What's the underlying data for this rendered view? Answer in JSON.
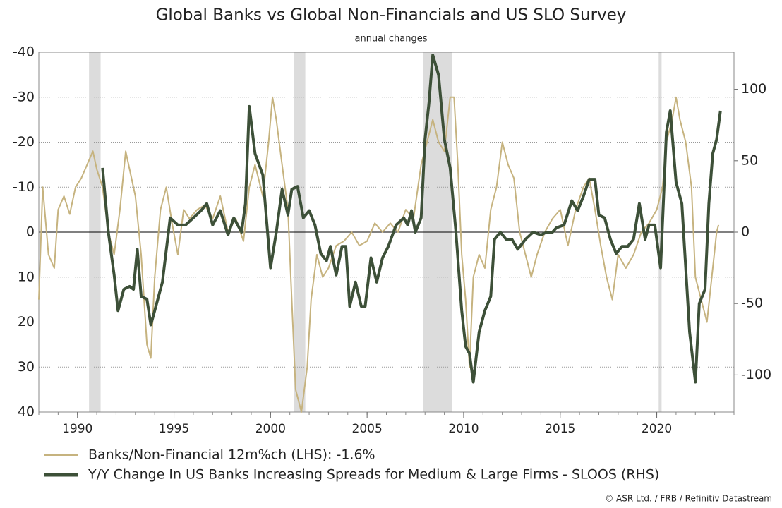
{
  "chart_data": {
    "type": "line",
    "title": "Global Banks vs Global Non-Financials and US SLO Survey",
    "subtitle": "annual changes",
    "source": "© ASR Ltd. / FRB / Refinitiv Datastream",
    "xlim": [
      1988,
      2024
    ],
    "xticks": [
      1990,
      1995,
      2000,
      2005,
      2010,
      2015,
      2020
    ],
    "ylim": [
      -40,
      40
    ],
    "y_inverted": true,
    "yticks": [
      -40,
      -30,
      -20,
      -10,
      0,
      10,
      20,
      30,
      40
    ],
    "y2lim": [
      -126,
      126
    ],
    "y2ticks": [
      -100,
      -50,
      0,
      50,
      100
    ],
    "grid": true,
    "shaded_periods": [
      [
        1990.6,
        1991.2
      ],
      [
        2001.2,
        2001.8
      ],
      [
        2007.9,
        2009.4
      ],
      [
        2020.1,
        2020.25
      ]
    ],
    "series": [
      {
        "name": "Banks/Non-Financial 12m%ch (LHS): -1.6%",
        "color": "#c6b37f",
        "axis": "y",
        "x": [
          1988.0,
          1988.2,
          1988.5,
          1988.8,
          1989.0,
          1989.3,
          1989.6,
          1989.9,
          1990.2,
          1990.5,
          1990.8,
          1991.0,
          1991.3,
          1991.6,
          1991.9,
          1992.2,
          1992.5,
          1992.8,
          1993.0,
          1993.3,
          1993.6,
          1993.8,
          1994.0,
          1994.3,
          1994.6,
          1994.9,
          1995.2,
          1995.5,
          1995.8,
          1996.2,
          1996.6,
          1997.0,
          1997.4,
          1997.8,
          1998.2,
          1998.6,
          1998.9,
          1999.2,
          1999.6,
          1999.9,
          2000.1,
          2000.3,
          2000.6,
          2000.9,
          2001.1,
          2001.3,
          2001.6,
          2001.9,
          2002.1,
          2002.4,
          2002.7,
          2003.0,
          2003.4,
          2003.8,
          2004.2,
          2004.6,
          2005.0,
          2005.4,
          2005.8,
          2006.2,
          2006.6,
          2007.0,
          2007.4,
          2007.8,
          2008.1,
          2008.4,
          2008.7,
          2009.0,
          2009.3,
          2009.5,
          2009.7,
          2009.9,
          2010.1,
          2010.3,
          2010.5,
          2010.8,
          2011.1,
          2011.4,
          2011.7,
          2012.0,
          2012.3,
          2012.6,
          2012.9,
          2013.2,
          2013.5,
          2013.8,
          2014.2,
          2014.6,
          2015.0,
          2015.4,
          2015.8,
          2016.2,
          2016.5,
          2016.8,
          2017.1,
          2017.4,
          2017.7,
          2018.0,
          2018.4,
          2018.8,
          2019.2,
          2019.6,
          2020.0,
          2020.3,
          2020.5,
          2020.8,
          2021.0,
          2021.2,
          2021.5,
          2021.8,
          2022.0,
          2022.3,
          2022.6,
          2022.9,
          2023.1,
          2023.2
        ],
        "values": [
          15,
          -10,
          5,
          8,
          -5,
          -8,
          -4,
          -10,
          -12,
          -15,
          -18,
          -14,
          -10,
          0,
          5,
          -5,
          -18,
          -12,
          -8,
          5,
          25,
          28,
          10,
          -5,
          -10,
          -2,
          5,
          -5,
          -3,
          -5,
          -6,
          -3,
          -8,
          0,
          -3,
          2,
          -10,
          -15,
          -8,
          -20,
          -30,
          -25,
          -15,
          -5,
          15,
          35,
          40,
          30,
          15,
          5,
          10,
          8,
          3,
          2,
          0,
          3,
          2,
          -2,
          0,
          -2,
          0,
          -5,
          -3,
          -15,
          -20,
          -25,
          -20,
          -18,
          -30,
          -30,
          -15,
          5,
          15,
          30,
          10,
          5,
          8,
          -5,
          -10,
          -20,
          -15,
          -12,
          0,
          5,
          10,
          5,
          0,
          -3,
          -5,
          3,
          -5,
          -10,
          -12,
          -5,
          3,
          10,
          15,
          5,
          8,
          5,
          0,
          -2,
          -5,
          -10,
          -20,
          -25,
          -30,
          -25,
          -20,
          -10,
          10,
          15,
          20,
          8,
          0,
          -1.6
        ]
      },
      {
        "name": "Y/Y Change In US Banks Increasing Spreads for Medium & Large Firms - SLOOS (RHS)",
        "color": "#3d5038",
        "axis": "y2",
        "x": [
          1991.3,
          1991.6,
          1991.9,
          1992.1,
          1992.4,
          1992.7,
          1992.9,
          1993.1,
          1993.3,
          1993.6,
          1993.8,
          1994.0,
          1994.4,
          1994.8,
          1995.2,
          1995.6,
          1996.0,
          1996.4,
          1996.7,
          1997.0,
          1997.4,
          1997.8,
          1998.1,
          1998.5,
          1998.7,
          1998.9,
          1999.2,
          1999.6,
          2000.0,
          2000.3,
          2000.6,
          2000.9,
          2001.1,
          2001.4,
          2001.7,
          2002.0,
          2002.3,
          2002.6,
          2002.9,
          2003.1,
          2003.4,
          2003.7,
          2003.9,
          2004.1,
          2004.4,
          2004.7,
          2004.9,
          2005.2,
          2005.5,
          2005.8,
          2006.1,
          2006.5,
          2006.9,
          2007.1,
          2007.3,
          2007.5,
          2007.8,
          2008.0,
          2008.2,
          2008.4,
          2008.7,
          2009.0,
          2009.3,
          2009.6,
          2009.9,
          2010.1,
          2010.3,
          2010.5,
          2010.8,
          2011.1,
          2011.4,
          2011.6,
          2011.9,
          2012.2,
          2012.5,
          2012.8,
          2013.2,
          2013.6,
          2014.0,
          2014.3,
          2014.6,
          2014.8,
          2015.2,
          2015.6,
          2015.9,
          2016.2,
          2016.5,
          2016.8,
          2017.0,
          2017.3,
          2017.6,
          2017.9,
          2018.2,
          2018.5,
          2018.8,
          2019.1,
          2019.4,
          2019.6,
          2019.9,
          2020.2,
          2020.5,
          2020.7,
          2021.0,
          2021.3,
          2021.7,
          2022.0,
          2022.2,
          2022.5,
          2022.7,
          2022.9,
          2023.1,
          2023.3
        ],
        "values": [
          45,
          0,
          -30,
          -55,
          -40,
          -38,
          -40,
          -12,
          -45,
          -47,
          -65,
          -55,
          -35,
          10,
          5,
          5,
          10,
          15,
          20,
          5,
          15,
          -2,
          10,
          0,
          20,
          88,
          55,
          40,
          -25,
          0,
          30,
          12,
          30,
          32,
          10,
          15,
          5,
          -15,
          -20,
          -10,
          -30,
          -10,
          -10,
          -52,
          -35,
          -52,
          -52,
          -18,
          -35,
          -18,
          -10,
          5,
          10,
          5,
          15,
          0,
          10,
          65,
          90,
          124,
          110,
          65,
          45,
          0,
          -55,
          -80,
          -85,
          -105,
          -70,
          -55,
          -45,
          -5,
          0,
          -5,
          -5,
          -12,
          -5,
          0,
          -2,
          0,
          0,
          3,
          5,
          22,
          15,
          25,
          37,
          37,
          12,
          10,
          -5,
          -15,
          -10,
          -10,
          -5,
          20,
          -5,
          5,
          5,
          -25,
          70,
          85,
          35,
          20,
          -70,
          -105,
          -50,
          -40,
          20,
          55,
          65,
          85
        ]
      }
    ]
  }
}
